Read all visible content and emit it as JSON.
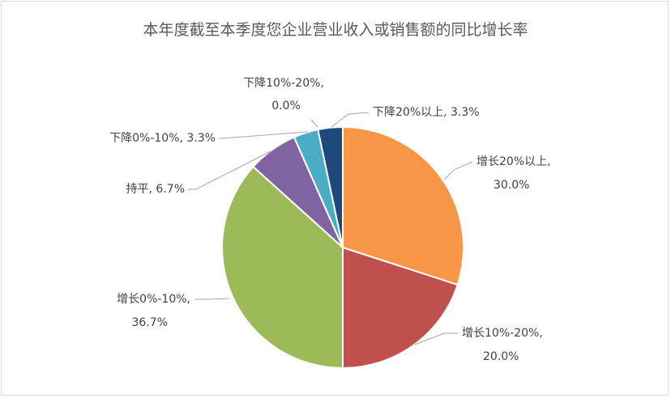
{
  "chart_data": {
    "type": "pie",
    "title": "本年度截至本季度您企业营业收入或销售额的同比增长率",
    "categories": [
      "增长20%以上",
      "增长10%-20%",
      "增长0%-10%",
      "持平",
      "下降0%-10%",
      "下降10%-20%",
      "下降20%以上"
    ],
    "values": [
      30.0,
      20.0,
      36.7,
      6.7,
      3.3,
      0.0,
      3.3
    ],
    "value_labels": [
      "30.0%",
      "20.0%",
      "36.7%",
      "6.7%",
      "3.3%",
      "0.0%",
      "3.3%"
    ],
    "colors": [
      "#F79646",
      "#C0504D",
      "#9BBB59",
      "#8064A2",
      "#4BACC6",
      "#F79646",
      "#1F497D"
    ],
    "legend": "none",
    "start_angle": "12 o'clock, clockwise"
  }
}
